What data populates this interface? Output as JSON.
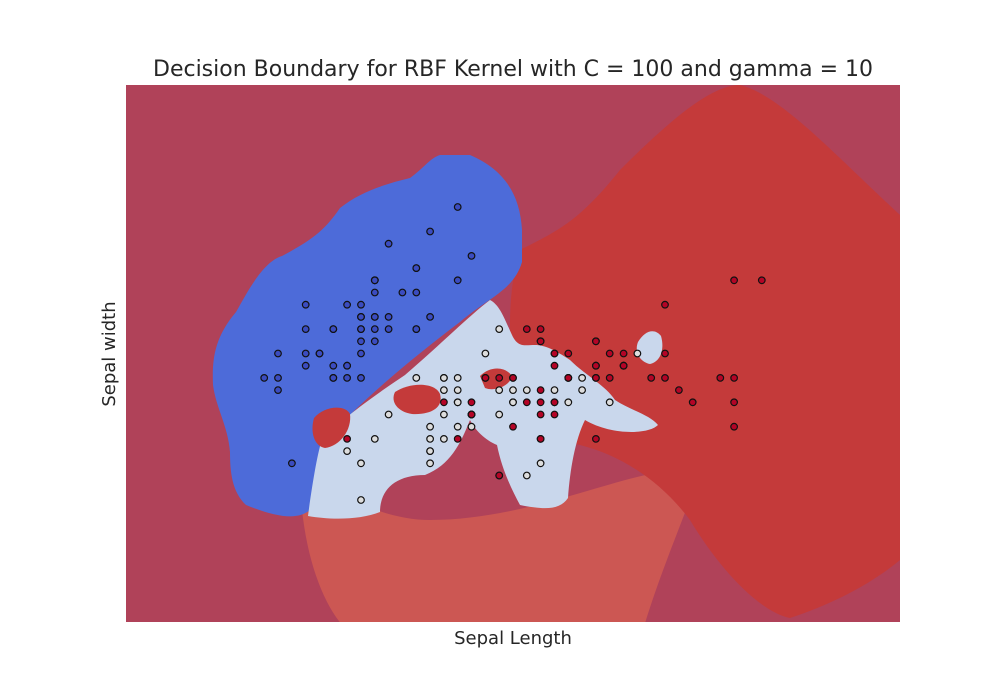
{
  "chart_data": {
    "type": "scatter",
    "title": "Decision Boundary for RBF Kernel with C = 100 and gamma = 10",
    "xlabel": "Sepal Length",
    "ylabel": "Sepal width",
    "xlim": [
      3.3,
      8.9
    ],
    "ylim": [
      1.0,
      5.4
    ],
    "show_ticks": false,
    "grid": false,
    "colors": {
      "background": "#b04259",
      "class_0_region": "#4d6bd9",
      "class_1_region": "#c9d7ec",
      "class_2_region": "#c43a3a",
      "class_2_halo": "#cc5753",
      "class_0_point": "#3b4cc0",
      "class_1_point": "#dddddd",
      "class_2_point": "#b40426"
    },
    "series": [
      {
        "class": 0,
        "points": [
          [
            5.1,
            3.5
          ],
          [
            4.9,
            3.0
          ],
          [
            4.7,
            3.2
          ],
          [
            4.6,
            3.1
          ],
          [
            5.0,
            3.6
          ],
          [
            5.4,
            3.9
          ],
          [
            4.6,
            3.4
          ],
          [
            5.0,
            3.4
          ],
          [
            4.4,
            2.9
          ],
          [
            4.9,
            3.1
          ],
          [
            5.4,
            3.7
          ],
          [
            4.8,
            3.4
          ],
          [
            4.8,
            3.0
          ],
          [
            4.3,
            3.0
          ],
          [
            5.8,
            4.0
          ],
          [
            5.7,
            4.4
          ],
          [
            5.4,
            3.9
          ],
          [
            5.1,
            3.5
          ],
          [
            5.7,
            3.8
          ],
          [
            5.1,
            3.8
          ],
          [
            5.4,
            3.4
          ],
          [
            5.1,
            3.7
          ],
          [
            4.6,
            3.6
          ],
          [
            5.1,
            3.3
          ],
          [
            4.8,
            3.4
          ],
          [
            5.0,
            3.0
          ],
          [
            5.0,
            3.4
          ],
          [
            5.2,
            3.5
          ],
          [
            5.2,
            3.4
          ],
          [
            4.7,
            3.2
          ],
          [
            4.8,
            3.1
          ],
          [
            5.4,
            3.4
          ],
          [
            5.2,
            4.1
          ],
          [
            5.5,
            4.2
          ],
          [
            4.9,
            3.1
          ],
          [
            5.0,
            3.2
          ],
          [
            5.5,
            3.5
          ],
          [
            4.9,
            3.6
          ],
          [
            4.4,
            3.0
          ],
          [
            5.1,
            3.4
          ],
          [
            5.0,
            3.5
          ],
          [
            4.5,
            2.3
          ],
          [
            4.4,
            3.2
          ],
          [
            5.0,
            3.5
          ],
          [
            5.1,
            3.8
          ],
          [
            4.8,
            3.0
          ],
          [
            5.1,
            3.8
          ],
          [
            4.6,
            3.2
          ],
          [
            5.3,
            3.7
          ],
          [
            5.0,
            3.3
          ]
        ]
      },
      {
        "class": 1,
        "points": [
          [
            7.0,
            3.2
          ],
          [
            6.4,
            3.2
          ],
          [
            6.9,
            3.1
          ],
          [
            5.5,
            2.3
          ],
          [
            6.5,
            2.8
          ],
          [
            5.7,
            2.8
          ],
          [
            6.3,
            3.3
          ],
          [
            4.9,
            2.4
          ],
          [
            6.6,
            2.9
          ],
          [
            5.2,
            2.7
          ],
          [
            5.0,
            2.0
          ],
          [
            5.9,
            3.0
          ],
          [
            6.0,
            2.2
          ],
          [
            6.1,
            2.9
          ],
          [
            5.6,
            2.9
          ],
          [
            6.7,
            3.1
          ],
          [
            5.6,
            3.0
          ],
          [
            5.8,
            2.7
          ],
          [
            6.2,
            2.2
          ],
          [
            5.6,
            2.5
          ],
          [
            5.9,
            3.2
          ],
          [
            6.1,
            2.8
          ],
          [
            6.3,
            2.5
          ],
          [
            6.1,
            2.8
          ],
          [
            6.4,
            2.9
          ],
          [
            6.6,
            3.0
          ],
          [
            6.8,
            2.8
          ],
          [
            6.7,
            3.0
          ],
          [
            6.0,
            2.9
          ],
          [
            5.7,
            2.6
          ],
          [
            5.5,
            2.4
          ],
          [
            5.5,
            2.4
          ],
          [
            5.8,
            2.7
          ],
          [
            6.0,
            2.7
          ],
          [
            5.4,
            3.0
          ],
          [
            6.0,
            3.4
          ],
          [
            6.7,
            3.1
          ],
          [
            6.3,
            2.3
          ],
          [
            5.6,
            3.0
          ],
          [
            5.5,
            2.5
          ],
          [
            5.5,
            2.6
          ],
          [
            6.1,
            3.0
          ],
          [
            5.8,
            2.6
          ],
          [
            5.0,
            2.3
          ],
          [
            5.6,
            2.7
          ],
          [
            5.7,
            3.0
          ],
          [
            5.7,
            2.9
          ],
          [
            6.2,
            2.9
          ],
          [
            5.1,
            2.5
          ],
          [
            5.7,
            2.8
          ]
        ]
      },
      {
        "class": 2,
        "points": [
          [
            6.3,
            3.3
          ],
          [
            5.8,
            2.7
          ],
          [
            7.1,
            3.0
          ],
          [
            6.3,
            2.9
          ],
          [
            6.5,
            3.0
          ],
          [
            7.6,
            3.0
          ],
          [
            4.9,
            2.5
          ],
          [
            7.3,
            2.9
          ],
          [
            6.7,
            2.5
          ],
          [
            7.2,
            3.6
          ],
          [
            6.5,
            3.2
          ],
          [
            6.4,
            2.7
          ],
          [
            6.8,
            3.0
          ],
          [
            5.7,
            2.5
          ],
          [
            5.8,
            2.8
          ],
          [
            6.4,
            3.2
          ],
          [
            6.5,
            3.0
          ],
          [
            7.7,
            3.8
          ],
          [
            7.7,
            2.6
          ],
          [
            6.0,
            2.2
          ],
          [
            6.9,
            3.2
          ],
          [
            5.6,
            2.8
          ],
          [
            7.7,
            2.8
          ],
          [
            6.3,
            2.7
          ],
          [
            6.7,
            3.3
          ],
          [
            7.2,
            3.2
          ],
          [
            6.2,
            2.8
          ],
          [
            6.1,
            3.0
          ],
          [
            6.4,
            2.8
          ],
          [
            7.2,
            3.0
          ],
          [
            7.4,
            2.8
          ],
          [
            7.9,
            3.8
          ],
          [
            6.4,
            2.8
          ],
          [
            6.3,
            2.8
          ],
          [
            6.1,
            2.6
          ],
          [
            7.7,
            3.0
          ],
          [
            6.3,
            3.4
          ],
          [
            6.4,
            3.1
          ],
          [
            6.0,
            3.0
          ],
          [
            6.9,
            3.1
          ],
          [
            6.7,
            3.1
          ],
          [
            6.9,
            3.1
          ],
          [
            5.8,
            2.7
          ],
          [
            6.8,
            3.2
          ],
          [
            6.7,
            3.3
          ],
          [
            6.7,
            3.0
          ],
          [
            6.3,
            2.5
          ],
          [
            6.5,
            3.0
          ],
          [
            6.2,
            3.4
          ],
          [
            5.9,
            3.0
          ]
        ]
      }
    ]
  }
}
